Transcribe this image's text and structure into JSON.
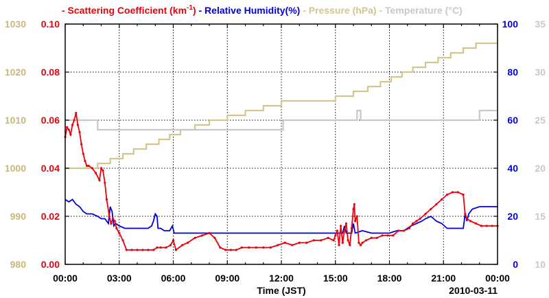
{
  "chart_data": {
    "type": "line",
    "legend": [
      {
        "label": "- Scattering Coefficient (km",
        "sup": "-1",
        "tail": ")",
        "color": "#e8000b"
      },
      {
        "label": "- Relative Humidity(%)",
        "color": "#0000dd"
      },
      {
        "label": "- Pressure (hPa)",
        "color": "#d2c68c"
      },
      {
        "label": "- Temperature (°C)",
        "color": "#c8c8c8"
      }
    ],
    "xlabel": "Time (JST)",
    "date_label": "2010-03-11",
    "x_ticks": [
      "00:00",
      "03:00",
      "06:00",
      "09:00",
      "12:00",
      "15:00",
      "18:00",
      "21:00",
      "00:00"
    ],
    "x_range_hours": [
      0,
      24
    ],
    "axes": {
      "pressure": {
        "range": [
          980,
          1030
        ],
        "ticks": [
          "980",
          "990",
          "1000",
          "1010",
          "1020",
          "1030"
        ],
        "color": "#c8b878"
      },
      "scattering": {
        "range": [
          0,
          0.1
        ],
        "ticks": [
          "0.00",
          "0.02",
          "0.04",
          "0.06",
          "0.08",
          "0.10"
        ],
        "color": "#e8000b"
      },
      "humidity": {
        "range": [
          0,
          100
        ],
        "ticks": [
          "0",
          "20",
          "40",
          "60",
          "80",
          "100"
        ],
        "color": "#0000dd"
      },
      "temperature": {
        "range": [
          10,
          35
        ],
        "ticks": [
          "10",
          "15",
          "20",
          "25",
          "30",
          "35"
        ],
        "color": "#c8c8c8"
      }
    },
    "grid": true,
    "series": [
      {
        "key": "scattering",
        "color": "#e8000b",
        "axis": "scattering",
        "markers": true,
        "points": [
          [
            0,
            0.053
          ],
          [
            0.1,
            0.057
          ],
          [
            0.2,
            0.056
          ],
          [
            0.3,
            0.054
          ],
          [
            0.4,
            0.058
          ],
          [
            0.5,
            0.06
          ],
          [
            0.6,
            0.063
          ],
          [
            0.7,
            0.058
          ],
          [
            0.8,
            0.055
          ],
          [
            0.9,
            0.05
          ],
          [
            1,
            0.046
          ],
          [
            1.1,
            0.043
          ],
          [
            1.2,
            0.041
          ],
          [
            1.3,
            0.041
          ],
          [
            1.5,
            0.04
          ],
          [
            1.7,
            0.038
          ],
          [
            1.9,
            0.035
          ],
          [
            2,
            0.04
          ],
          [
            2.1,
            0.039
          ],
          [
            2.2,
            0.034
          ],
          [
            2.3,
            0.027
          ],
          [
            2.45,
            0.02
          ],
          [
            2.55,
            0.017
          ],
          [
            2.65,
            0.019
          ],
          [
            2.75,
            0.018
          ],
          [
            2.85,
            0.015
          ],
          [
            3,
            0.013
          ],
          [
            3.2,
            0.01
          ],
          [
            3.4,
            0.006
          ],
          [
            3.7,
            0.006
          ],
          [
            4,
            0.006
          ],
          [
            4.3,
            0.006
          ],
          [
            4.6,
            0.006
          ],
          [
            4.9,
            0.006
          ],
          [
            5.1,
            0.007
          ],
          [
            5.3,
            0.007
          ],
          [
            5.6,
            0.007
          ],
          [
            5.85,
            0.008
          ],
          [
            6,
            0.01
          ],
          [
            6.15,
            0.006
          ],
          [
            6.5,
            0.008
          ],
          [
            6.8,
            0.009
          ],
          [
            7.2,
            0.011
          ],
          [
            7.6,
            0.012
          ],
          [
            8,
            0.013
          ],
          [
            8.3,
            0.011
          ],
          [
            8.6,
            0.007
          ],
          [
            8.9,
            0.006
          ],
          [
            9.2,
            0.006
          ],
          [
            9.5,
            0.006
          ],
          [
            9.8,
            0.007
          ],
          [
            10.2,
            0.007
          ],
          [
            10.6,
            0.007
          ],
          [
            11,
            0.007
          ],
          [
            11.4,
            0.007
          ],
          [
            11.8,
            0.008
          ],
          [
            12.2,
            0.009
          ],
          [
            12.6,
            0.008
          ],
          [
            13,
            0.009
          ],
          [
            13.4,
            0.009
          ],
          [
            13.8,
            0.01
          ],
          [
            14.2,
            0.01
          ],
          [
            14.6,
            0.011
          ],
          [
            14.9,
            0.01
          ],
          [
            15,
            0.012
          ],
          [
            15.1,
            0.014
          ],
          [
            15.2,
            0.008
          ],
          [
            15.3,
            0.016
          ],
          [
            15.4,
            0.009
          ],
          [
            15.5,
            0.014
          ],
          [
            15.6,
            0.017
          ],
          [
            15.7,
            0.01
          ],
          [
            15.8,
            0.008
          ],
          [
            15.9,
            0.015
          ],
          [
            16,
            0.023
          ],
          [
            16.05,
            0.025
          ],
          [
            16.1,
            0.018
          ],
          [
            16.2,
            0.02
          ],
          [
            16.3,
            0.009
          ],
          [
            16.4,
            0.008
          ],
          [
            16.5,
            0.009
          ],
          [
            16.7,
            0.01
          ],
          [
            17,
            0.011
          ],
          [
            17.3,
            0.011
          ],
          [
            17.6,
            0.012
          ],
          [
            17.9,
            0.012
          ],
          [
            18.2,
            0.012
          ],
          [
            18.5,
            0.014
          ],
          [
            18.8,
            0.014
          ],
          [
            19.1,
            0.015
          ],
          [
            19.3,
            0.017
          ],
          [
            19.5,
            0.018
          ],
          [
            19.7,
            0.019
          ],
          [
            20,
            0.021
          ],
          [
            20.3,
            0.023
          ],
          [
            20.6,
            0.025
          ],
          [
            20.9,
            0.027
          ],
          [
            21.2,
            0.029
          ],
          [
            21.5,
            0.03
          ],
          [
            21.8,
            0.03
          ],
          [
            22.1,
            0.029
          ],
          [
            22.2,
            0.021
          ],
          [
            22.3,
            0.019
          ],
          [
            22.5,
            0.018
          ],
          [
            22.8,
            0.017
          ],
          [
            23.1,
            0.016
          ],
          [
            23.4,
            0.016
          ],
          [
            23.7,
            0.016
          ],
          [
            24,
            0.016
          ]
        ]
      },
      {
        "key": "humidity",
        "color": "#0000dd",
        "axis": "humidity",
        "markers": false,
        "points": [
          [
            0,
            27
          ],
          [
            0.2,
            26
          ],
          [
            0.4,
            27
          ],
          [
            0.6,
            25
          ],
          [
            0.8,
            24
          ],
          [
            1,
            22
          ],
          [
            1.2,
            21
          ],
          [
            1.5,
            21
          ],
          [
            1.8,
            20
          ],
          [
            2,
            19
          ],
          [
            2.2,
            19
          ],
          [
            2.4,
            17
          ],
          [
            2.5,
            24
          ],
          [
            2.6,
            22
          ],
          [
            2.7,
            16
          ],
          [
            2.8,
            17
          ],
          [
            3,
            16
          ],
          [
            3.3,
            15
          ],
          [
            3.6,
            15
          ],
          [
            4,
            15
          ],
          [
            4.3,
            15
          ],
          [
            4.6,
            15
          ],
          [
            4.8,
            16
          ],
          [
            4.9,
            18
          ],
          [
            5,
            21
          ],
          [
            5.1,
            20
          ],
          [
            5.15,
            15
          ],
          [
            5.3,
            15
          ],
          [
            5.5,
            14
          ],
          [
            5.8,
            14
          ],
          [
            5.95,
            16
          ],
          [
            6.05,
            13
          ],
          [
            6.2,
            13
          ],
          [
            7,
            13
          ],
          [
            8,
            13
          ],
          [
            9,
            13
          ],
          [
            10,
            13
          ],
          [
            11,
            13
          ],
          [
            12,
            13
          ],
          [
            13,
            13
          ],
          [
            14,
            13
          ],
          [
            15,
            13
          ],
          [
            15.4,
            13
          ],
          [
            15.5,
            16
          ],
          [
            15.6,
            13
          ],
          [
            15.9,
            13
          ],
          [
            16,
            17
          ],
          [
            16.1,
            13
          ],
          [
            16.5,
            14
          ],
          [
            17,
            13
          ],
          [
            18,
            13
          ],
          [
            18.4,
            14
          ],
          [
            18.8,
            14
          ],
          [
            19.2,
            16
          ],
          [
            19.5,
            17
          ],
          [
            19.8,
            18
          ],
          [
            20,
            19
          ],
          [
            20.3,
            20
          ],
          [
            20.6,
            18
          ],
          [
            20.9,
            17
          ],
          [
            21.2,
            15
          ],
          [
            21.5,
            15
          ],
          [
            21.8,
            15
          ],
          [
            22.1,
            15
          ],
          [
            22.2,
            21
          ],
          [
            22.3,
            18
          ],
          [
            22.4,
            21
          ],
          [
            22.6,
            23
          ],
          [
            23,
            24
          ],
          [
            23.5,
            24
          ],
          [
            24,
            24
          ]
        ]
      },
      {
        "key": "pressure",
        "color": "#d2c68c",
        "axis": "pressure",
        "markers": false,
        "step": true,
        "points": [
          [
            0,
            1000
          ],
          [
            1.8,
            1001
          ],
          [
            2.5,
            1002
          ],
          [
            3.2,
            1003
          ],
          [
            3.8,
            1004
          ],
          [
            4.5,
            1005
          ],
          [
            5.2,
            1006
          ],
          [
            5.8,
            1007
          ],
          [
            6.4,
            1008
          ],
          [
            7.2,
            1009
          ],
          [
            8,
            1010
          ],
          [
            9,
            1011
          ],
          [
            10,
            1012
          ],
          [
            11,
            1013
          ],
          [
            12,
            1014
          ],
          [
            13,
            1014
          ],
          [
            14,
            1014
          ],
          [
            15,
            1015
          ],
          [
            16,
            1016
          ],
          [
            16.8,
            1017
          ],
          [
            17.5,
            1018
          ],
          [
            18.1,
            1019
          ],
          [
            18.7,
            1020
          ],
          [
            19.3,
            1021
          ],
          [
            20,
            1022
          ],
          [
            20.7,
            1023
          ],
          [
            21.4,
            1024
          ],
          [
            22.1,
            1025
          ],
          [
            22.8,
            1026
          ],
          [
            24,
            1026
          ]
        ]
      },
      {
        "key": "temperature",
        "color": "#c8c8c8",
        "axis": "temperature",
        "markers": false,
        "step": true,
        "points": [
          [
            0,
            25
          ],
          [
            1.8,
            24
          ],
          [
            12,
            24
          ],
          [
            12.1,
            25
          ],
          [
            16.1,
            25
          ],
          [
            16.2,
            26
          ],
          [
            16.4,
            25
          ],
          [
            22.9,
            25
          ],
          [
            23,
            26
          ],
          [
            24,
            26
          ]
        ]
      }
    ]
  }
}
